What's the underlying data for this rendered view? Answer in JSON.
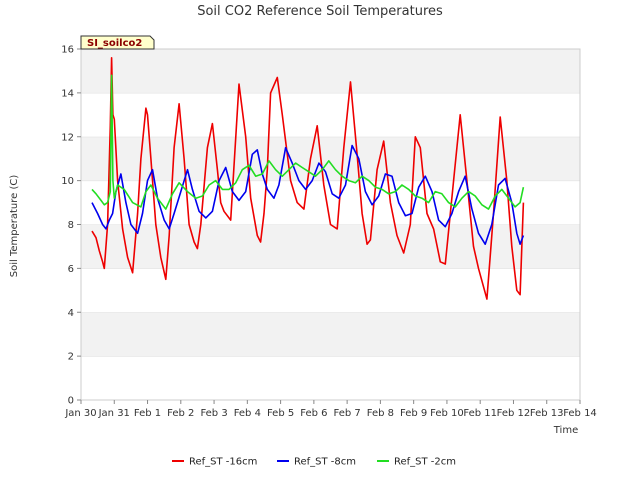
{
  "chart_data": {
    "type": "line",
    "title": "Soil CO2 Reference Soil Temperatures",
    "xlabel": "Time",
    "ylabel": "Soil Temperature (C)",
    "site_label": "SI_soilco2",
    "ylim": [
      0,
      16
    ],
    "yticks": [
      0,
      2,
      4,
      6,
      8,
      10,
      12,
      14,
      16
    ],
    "xlim": [
      "Jan 30",
      "Feb 14"
    ],
    "xticks": [
      "Jan 30",
      "Jan 31",
      "Feb 1",
      "Feb 2",
      "Feb 3",
      "Feb 4",
      "Feb 5",
      "Feb 6",
      "Feb 7",
      "Feb 8",
      "Feb 9",
      "Feb 10",
      "Feb 11",
      "Feb 12",
      "Feb 13",
      "Feb 14"
    ],
    "grid": "horizontal bands",
    "legend_position": "bottom",
    "x_units": "days since Jan 30 00:00",
    "series": [
      {
        "name": "Ref_ST -16cm",
        "color": "#ee0000",
        "x": [
          0.33,
          0.45,
          0.55,
          0.65,
          0.7,
          0.8,
          0.88,
          0.92,
          0.96,
          1.0,
          1.1,
          1.25,
          1.4,
          1.55,
          1.7,
          1.8,
          1.95,
          2.0,
          2.1,
          2.25,
          2.4,
          2.55,
          2.65,
          2.8,
          2.95,
          3.1,
          3.25,
          3.4,
          3.5,
          3.6,
          3.8,
          3.95,
          4.1,
          4.2,
          4.3,
          4.5,
          4.75,
          4.95,
          5.1,
          5.3,
          5.4,
          5.5,
          5.6,
          5.7,
          5.9,
          6.05,
          6.3,
          6.5,
          6.7,
          6.9,
          7.1,
          7.3,
          7.5,
          7.7,
          7.9,
          8.1,
          8.3,
          8.45,
          8.6,
          8.7,
          8.9,
          9.1,
          9.3,
          9.5,
          9.7,
          9.9,
          10.05,
          10.2,
          10.4,
          10.6,
          10.8,
          10.95,
          11.2,
          11.4,
          11.6,
          11.8,
          11.95,
          12.2,
          12.4,
          12.6,
          12.8,
          12.95,
          13.1,
          13.2,
          13.3
        ],
        "y": [
          7.7,
          7.4,
          6.8,
          6.3,
          6.0,
          8.0,
          12.5,
          15.6,
          13.0,
          12.8,
          10.0,
          7.8,
          6.5,
          5.8,
          8.5,
          11.0,
          13.3,
          13.0,
          11.0,
          8.0,
          6.5,
          5.5,
          7.5,
          11.5,
          13.5,
          11.0,
          8.0,
          7.2,
          6.9,
          8.0,
          11.5,
          12.6,
          10.5,
          9.0,
          8.6,
          8.2,
          14.4,
          12.0,
          9.2,
          7.5,
          7.2,
          8.5,
          10.5,
          14.0,
          14.7,
          13.0,
          10.0,
          9.0,
          8.7,
          11.0,
          12.5,
          9.8,
          8.0,
          7.8,
          11.5,
          14.5,
          11.2,
          8.5,
          7.1,
          7.3,
          10.5,
          11.8,
          9.0,
          7.5,
          6.7,
          8.0,
          12.0,
          11.5,
          8.5,
          7.8,
          6.3,
          6.2,
          10.0,
          13.0,
          10.0,
          7.0,
          6.0,
          4.6,
          8.5,
          12.9,
          10.0,
          7.0,
          5.0,
          4.8,
          9.0
        ]
      },
      {
        "name": "Ref_ST -8cm",
        "color": "#0000ee",
        "x": [
          0.33,
          0.5,
          0.65,
          0.75,
          0.85,
          0.95,
          1.05,
          1.2,
          1.35,
          1.5,
          1.7,
          1.85,
          2.0,
          2.15,
          2.3,
          2.5,
          2.65,
          2.8,
          3.0,
          3.2,
          3.35,
          3.55,
          3.75,
          3.95,
          4.15,
          4.35,
          4.55,
          4.75,
          4.95,
          5.15,
          5.3,
          5.45,
          5.6,
          5.8,
          5.95,
          6.15,
          6.35,
          6.55,
          6.75,
          6.95,
          7.15,
          7.35,
          7.55,
          7.75,
          7.95,
          8.15,
          8.35,
          8.55,
          8.75,
          8.95,
          9.15,
          9.35,
          9.55,
          9.75,
          9.95,
          10.15,
          10.35,
          10.55,
          10.75,
          10.95,
          11.15,
          11.35,
          11.55,
          11.75,
          11.95,
          12.15,
          12.35,
          12.55,
          12.75,
          12.95,
          13.1,
          13.2,
          13.3
        ],
        "y": [
          9.0,
          8.5,
          8.0,
          7.8,
          8.2,
          8.5,
          9.5,
          10.3,
          9.0,
          8.0,
          7.6,
          8.5,
          10.0,
          10.5,
          9.2,
          8.2,
          7.8,
          8.5,
          9.5,
          10.5,
          9.6,
          8.6,
          8.3,
          8.6,
          10.0,
          10.6,
          9.5,
          9.1,
          9.5,
          11.2,
          11.4,
          10.3,
          9.6,
          9.2,
          9.8,
          11.5,
          10.8,
          10.0,
          9.6,
          10.0,
          10.8,
          10.4,
          9.4,
          9.2,
          9.8,
          11.6,
          11.0,
          9.5,
          8.9,
          9.3,
          10.3,
          10.2,
          9.0,
          8.4,
          8.5,
          9.7,
          10.2,
          9.5,
          8.2,
          7.9,
          8.5,
          9.5,
          10.2,
          8.7,
          7.6,
          7.1,
          8.0,
          9.8,
          10.1,
          9.0,
          7.6,
          7.1,
          7.5
        ]
      },
      {
        "name": "Ref_ST -2cm",
        "color": "#22dd22",
        "x": [
          0.33,
          0.45,
          0.6,
          0.7,
          0.8,
          0.88,
          0.92,
          0.96,
          1.0,
          1.1,
          1.3,
          1.55,
          1.8,
          1.95,
          2.1,
          2.3,
          2.55,
          2.75,
          2.95,
          3.2,
          3.45,
          3.65,
          3.85,
          4.05,
          4.25,
          4.45,
          4.65,
          4.85,
          5.05,
          5.25,
          5.45,
          5.65,
          5.85,
          6.05,
          6.25,
          6.45,
          6.65,
          6.85,
          7.05,
          7.25,
          7.45,
          7.65,
          7.85,
          8.05,
          8.25,
          8.45,
          8.65,
          8.85,
          9.05,
          9.25,
          9.45,
          9.65,
          9.85,
          10.05,
          10.25,
          10.45,
          10.65,
          10.85,
          11.05,
          11.25,
          11.45,
          11.65,
          11.85,
          12.05,
          12.25,
          12.45,
          12.65,
          12.85,
          13.05,
          13.2,
          13.3
        ],
        "y": [
          9.6,
          9.4,
          9.1,
          8.9,
          9.0,
          9.5,
          14.8,
          10.0,
          9.2,
          9.8,
          9.6,
          9.0,
          8.8,
          9.5,
          9.8,
          9.2,
          8.7,
          9.4,
          9.9,
          9.5,
          9.2,
          9.3,
          9.8,
          10.0,
          9.6,
          9.6,
          9.9,
          10.5,
          10.7,
          10.2,
          10.3,
          10.9,
          10.5,
          10.2,
          10.5,
          10.8,
          10.6,
          10.4,
          10.2,
          10.5,
          10.9,
          10.5,
          10.2,
          10.0,
          9.9,
          10.2,
          10.0,
          9.7,
          9.6,
          9.4,
          9.5,
          9.8,
          9.6,
          9.3,
          9.2,
          9.0,
          9.5,
          9.4,
          9.0,
          8.8,
          9.2,
          9.5,
          9.3,
          8.9,
          8.7,
          9.3,
          9.6,
          9.2,
          8.8,
          9.0,
          9.7
        ]
      }
    ]
  }
}
